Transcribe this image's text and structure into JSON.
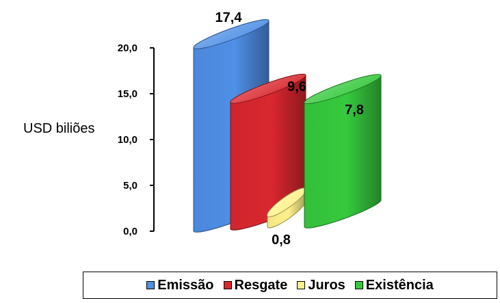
{
  "chart_data": {
    "type": "bar",
    "categories": [
      "Emissão",
      "Resgate",
      "Juros",
      "Existência"
    ],
    "values": [
      17.4,
      9.6,
      0.8,
      7.8
    ],
    "value_labels": [
      "17,4",
      "9,6",
      "0,8",
      "7,8"
    ],
    "ylabel": "USD biliões",
    "ylim": [
      0,
      20
    ],
    "yticks": [
      "0,0",
      "5,0",
      "10,0",
      "15,0",
      "20,0"
    ],
    "grid": false,
    "legend": "bottom",
    "colors": [
      "#4f8fe6",
      "#d9272e",
      "#fff18a",
      "#36c93d"
    ]
  }
}
